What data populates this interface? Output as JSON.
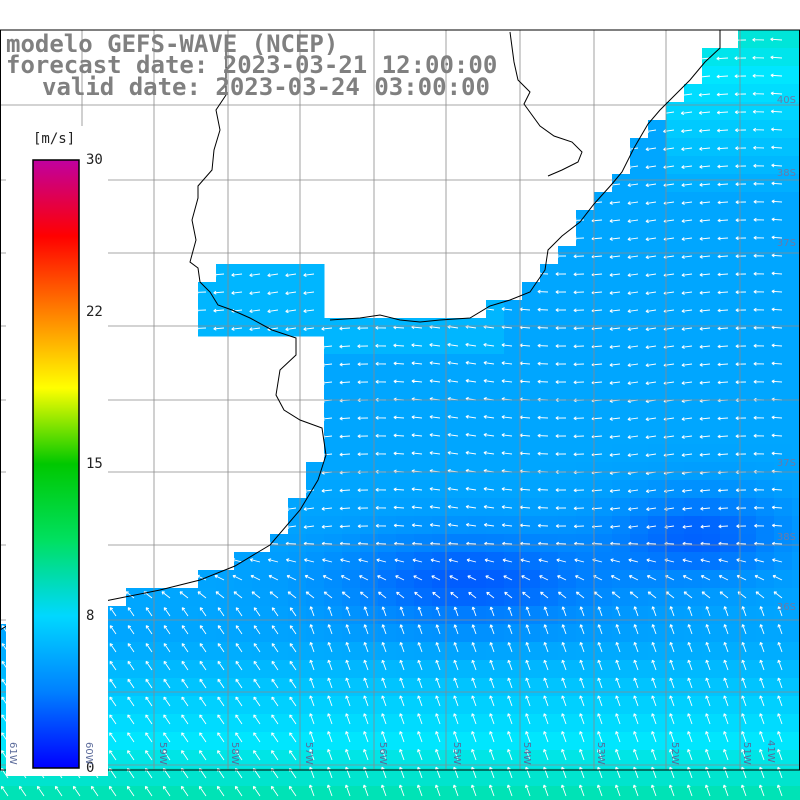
{
  "title": {
    "model": "modelo GEFS-WAVE (NCEP)",
    "forecast": "forecast date: 2023-03-21 12:00:00",
    "valid": "valid date: 2023-03-24 03:00:00"
  },
  "colorbar": {
    "unit": "[m/s]",
    "range": [
      0,
      30
    ],
    "ticks": [
      "30",
      "22",
      "15",
      "8",
      "0"
    ],
    "colors": [
      "#0000ff",
      "#0080ff",
      "#00d8ff",
      "#00e060",
      "#00c800",
      "#ffff00",
      "#ff8000",
      "#ff0000",
      "#c000a0"
    ]
  },
  "map": {
    "land_color": "#ffffff",
    "coast_color": "#000000",
    "grid_color": "#888888",
    "lat_labels": [
      "40S",
      "38S",
      "37S",
      "37S",
      "38S",
      "36S"
    ],
    "lon_labels": [
      "61W",
      "60W",
      "59W",
      "58W",
      "57W",
      "56W",
      "55W",
      "54W",
      "53W",
      "52W",
      "51W",
      "41W"
    ],
    "flow_direction": "wind arrows pointing west over the central ocean, turning northward in the southern area"
  }
}
